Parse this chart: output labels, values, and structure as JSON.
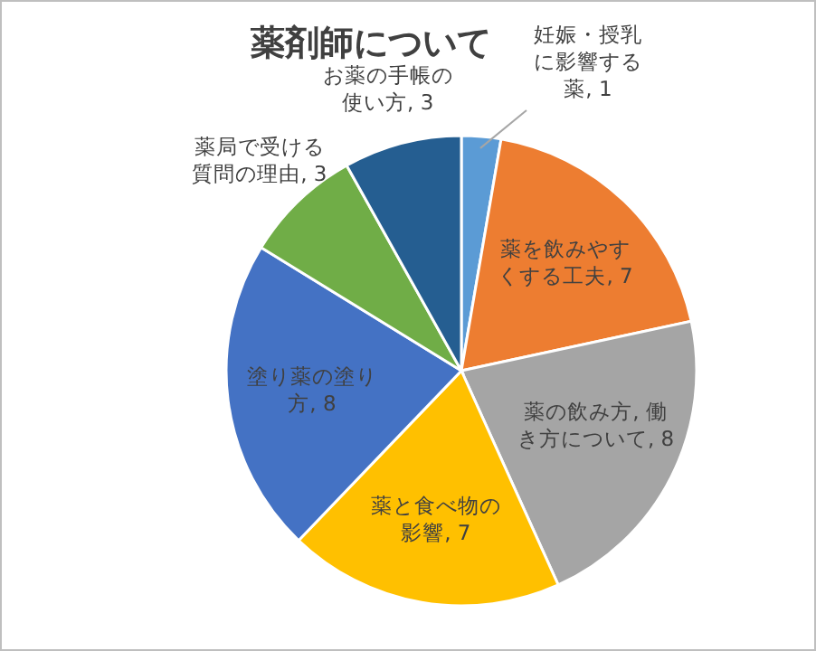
{
  "chart_data": {
    "type": "pie",
    "title": "薬剤師について",
    "value_labels": [
      ", 1",
      ", 7",
      ", 8",
      ", 7",
      ", 8",
      ", 3",
      ", 3"
    ],
    "categories": [
      "妊娠・授乳に影響する薬",
      "薬を飲みやすくする工夫",
      "薬の飲み方, 働き方について",
      "薬と食べ物の影響",
      "塗り薬の塗り方",
      "薬局で受ける質問の理由",
      "お薬の手帳の使い方"
    ],
    "values": [
      1,
      7,
      8,
      7,
      8,
      3,
      3
    ],
    "colors": [
      "#5b9bd5",
      "#ed7d31",
      "#a5a5a5",
      "#ffc000",
      "#4472c4",
      "#70ad47",
      "#255e91"
    ]
  }
}
